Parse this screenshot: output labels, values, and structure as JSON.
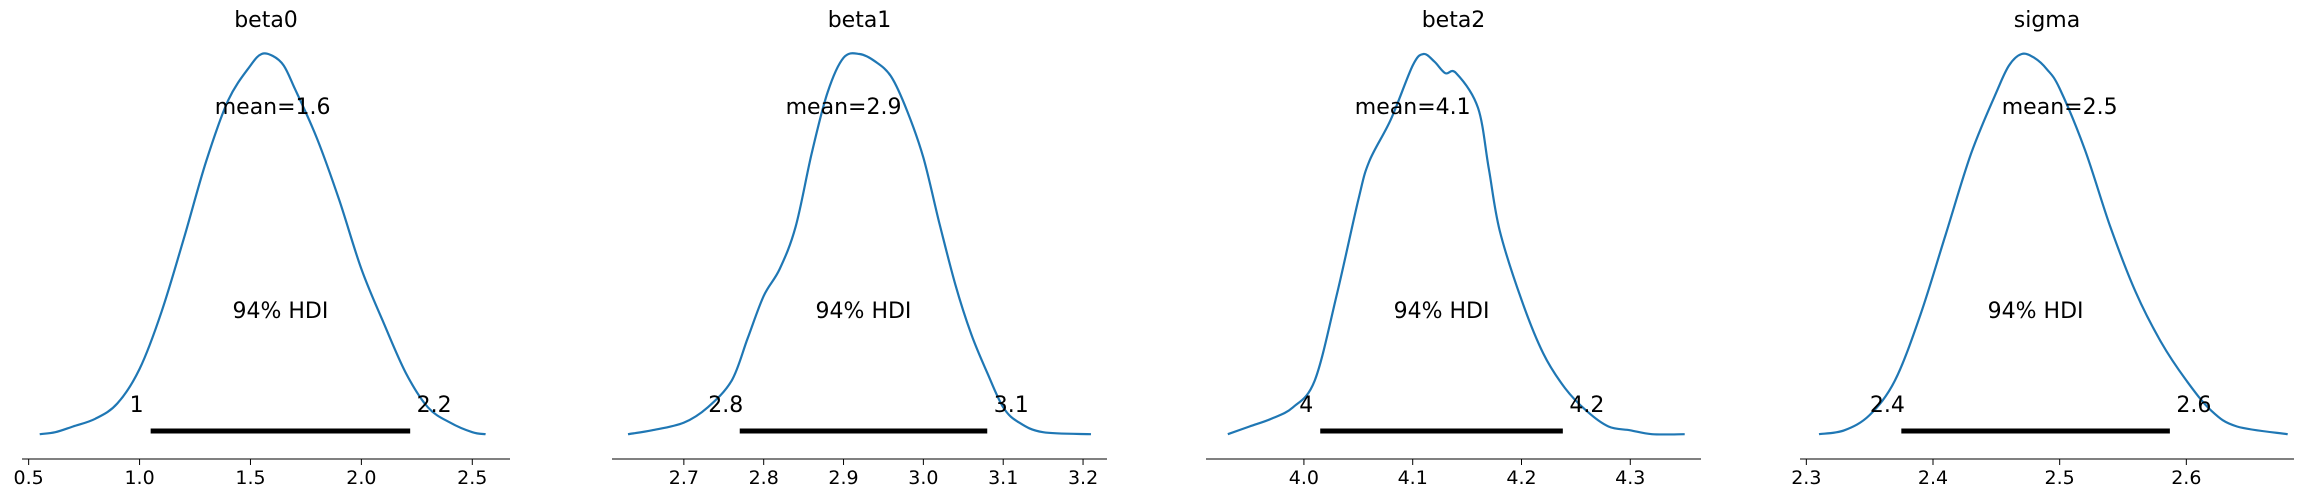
{
  "chart_data": [
    {
      "type": "line",
      "title": "beta0",
      "xlim": [
        0.47,
        2.67
      ],
      "xticks": [
        0.5,
        1.0,
        1.5,
        2.0,
        2.5
      ],
      "xtick_labels": [
        "0.5",
        "1.0",
        "1.5",
        "2.0",
        "2.5"
      ],
      "mean": 1.6,
      "mean_label": "mean=1.6",
      "hdi_label": "94% HDI",
      "hdi": [
        1.05,
        2.22
      ],
      "hdi_low_label": "1",
      "hdi_high_label": "2.2",
      "density": {
        "x": [
          0.55,
          0.62,
          0.7,
          0.8,
          0.9,
          1.0,
          1.1,
          1.2,
          1.3,
          1.4,
          1.5,
          1.55,
          1.6,
          1.65,
          1.7,
          1.8,
          1.9,
          2.0,
          2.1,
          2.2,
          2.3,
          2.4,
          2.5,
          2.56
        ],
        "y": [
          0.01,
          0.015,
          0.03,
          0.05,
          0.09,
          0.18,
          0.33,
          0.52,
          0.72,
          0.88,
          0.97,
          1.0,
          0.995,
          0.97,
          0.91,
          0.78,
          0.62,
          0.44,
          0.3,
          0.17,
          0.08,
          0.04,
          0.015,
          0.01
        ]
      }
    },
    {
      "type": "line",
      "title": "beta1",
      "xlim": [
        2.61,
        3.23
      ],
      "xticks": [
        2.7,
        2.8,
        2.9,
        3.0,
        3.1,
        3.2
      ],
      "xtick_labels": [
        "2.7",
        "2.8",
        "2.9",
        "3.0",
        "3.1",
        "3.2"
      ],
      "mean": 2.9,
      "mean_label": "mean=2.9",
      "hdi_label": "94% HDI",
      "hdi": [
        2.77,
        3.08
      ],
      "hdi_low_label": "2.8",
      "hdi_high_label": "3.1",
      "density": {
        "x": [
          2.63,
          2.66,
          2.7,
          2.73,
          2.76,
          2.78,
          2.8,
          2.82,
          2.84,
          2.86,
          2.88,
          2.9,
          2.92,
          2.94,
          2.96,
          2.98,
          3.0,
          3.02,
          3.04,
          3.06,
          3.08,
          3.1,
          3.12,
          3.15,
          3.21
        ],
        "y": [
          0.01,
          0.02,
          0.04,
          0.08,
          0.15,
          0.26,
          0.37,
          0.44,
          0.55,
          0.74,
          0.9,
          0.99,
          1.0,
          0.98,
          0.94,
          0.85,
          0.73,
          0.56,
          0.4,
          0.27,
          0.17,
          0.08,
          0.04,
          0.015,
          0.01
        ]
      }
    },
    {
      "type": "line",
      "title": "beta2",
      "xlim": [
        3.91,
        4.365
      ],
      "xticks": [
        4.0,
        4.1,
        4.2,
        4.3
      ],
      "xtick_labels": [
        "4.0",
        "4.1",
        "4.2",
        "4.3"
      ],
      "mean": 4.1,
      "mean_label": "mean=4.1",
      "hdi_label": "94% HDI",
      "hdi": [
        4.015,
        4.238
      ],
      "hdi_low_label": "4",
      "hdi_high_label": "4.2",
      "density": {
        "x": [
          3.93,
          3.95,
          3.97,
          3.99,
          4.01,
          4.03,
          4.05,
          4.06,
          4.08,
          4.1,
          4.11,
          4.12,
          4.13,
          4.14,
          4.16,
          4.17,
          4.18,
          4.2,
          4.22,
          4.24,
          4.26,
          4.28,
          4.3,
          4.32,
          4.35
        ],
        "y": [
          0.01,
          0.03,
          0.05,
          0.08,
          0.15,
          0.37,
          0.62,
          0.72,
          0.83,
          0.97,
          1.0,
          0.98,
          0.95,
          0.95,
          0.86,
          0.7,
          0.54,
          0.36,
          0.22,
          0.13,
          0.07,
          0.03,
          0.02,
          0.01,
          0.01
        ]
      }
    },
    {
      "type": "line",
      "title": "sigma",
      "xlim": [
        2.295,
        2.685
      ],
      "xticks": [
        2.3,
        2.4,
        2.5,
        2.6
      ],
      "xtick_labels": [
        "2.3",
        "2.4",
        "2.5",
        "2.6"
      ],
      "mean": 2.5,
      "mean_label": "mean=2.5",
      "hdi_label": "94% HDI",
      "hdi": [
        2.375,
        2.587
      ],
      "hdi_low_label": "2.4",
      "hdi_high_label": "2.6",
      "density": {
        "x": [
          2.31,
          2.33,
          2.35,
          2.37,
          2.39,
          2.41,
          2.43,
          2.45,
          2.46,
          2.47,
          2.48,
          2.49,
          2.5,
          2.52,
          2.54,
          2.56,
          2.58,
          2.6,
          2.62,
          2.64,
          2.68
        ],
        "y": [
          0.01,
          0.02,
          0.06,
          0.15,
          0.32,
          0.53,
          0.74,
          0.9,
          0.97,
          1.0,
          0.99,
          0.96,
          0.91,
          0.75,
          0.55,
          0.38,
          0.25,
          0.15,
          0.07,
          0.03,
          0.01
        ]
      }
    }
  ]
}
